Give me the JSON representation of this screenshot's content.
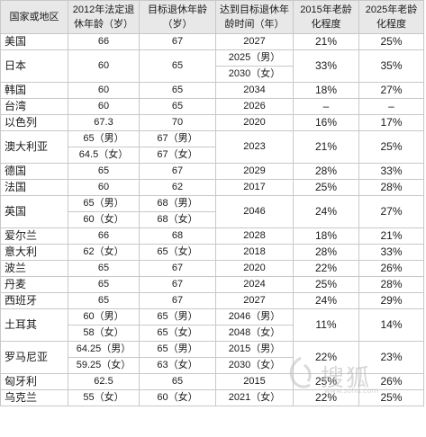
{
  "headers": {
    "country": "国家或地区",
    "age2012": "2012年法定退休年龄（岁）",
    "target_age": "目标退休年龄（岁）",
    "reach_time": "达到目标退休年龄时间（年）",
    "aging2015": "2015年老龄化程度",
    "aging2025": "2025年老龄化程度"
  },
  "rows": [
    {
      "country": "美国",
      "age2012": [
        "66"
      ],
      "target": [
        "67"
      ],
      "time": [
        "2027"
      ],
      "p2015": "21%",
      "p2025": "25%"
    },
    {
      "country": "日本",
      "age2012": [
        "60"
      ],
      "target": [
        "65"
      ],
      "time": [
        "2025（男）",
        "2030（女）"
      ],
      "p2015": "33%",
      "p2025": "35%"
    },
    {
      "country": "韩国",
      "age2012": [
        "60"
      ],
      "target": [
        "65"
      ],
      "time": [
        "2034"
      ],
      "p2015": "18%",
      "p2025": "27%"
    },
    {
      "country": "台湾",
      "age2012": [
        "60"
      ],
      "target": [
        "65"
      ],
      "time": [
        "2026"
      ],
      "p2015": "–",
      "p2025": "–"
    },
    {
      "country": "以色列",
      "age2012": [
        "67.3"
      ],
      "target": [
        "70"
      ],
      "time": [
        "2020"
      ],
      "p2015": "16%",
      "p2025": "17%"
    },
    {
      "country": "澳大利亚",
      "age2012": [
        "65（男）",
        "64.5（女）"
      ],
      "target": [
        "67（男）",
        "67（女）"
      ],
      "time": [
        "2023"
      ],
      "p2015": "21%",
      "p2025": "25%"
    },
    {
      "country": "德国",
      "age2012": [
        "65"
      ],
      "target": [
        "67"
      ],
      "time": [
        "2029"
      ],
      "p2015": "28%",
      "p2025": "33%"
    },
    {
      "country": "法国",
      "age2012": [
        "60"
      ],
      "target": [
        "62"
      ],
      "time": [
        "2017"
      ],
      "p2015": "25%",
      "p2025": "28%"
    },
    {
      "country": "英国",
      "age2012": [
        "65（男）",
        "60（女）"
      ],
      "target": [
        "68（男）",
        "68（女）"
      ],
      "time": [
        "2046"
      ],
      "p2015": "24%",
      "p2025": "27%"
    },
    {
      "country": "爱尔兰",
      "age2012": [
        "66"
      ],
      "target": [
        "68"
      ],
      "time": [
        "2028"
      ],
      "p2015": "18%",
      "p2025": "21%"
    },
    {
      "country": "意大利",
      "age2012": [
        "62（女）"
      ],
      "target": [
        "65（女）"
      ],
      "time": [
        "2018"
      ],
      "p2015": "28%",
      "p2025": "33%"
    },
    {
      "country": "波兰",
      "age2012": [
        "65"
      ],
      "target": [
        "67"
      ],
      "time": [
        "2020"
      ],
      "p2015": "22%",
      "p2025": "26%"
    },
    {
      "country": "丹麦",
      "age2012": [
        "65"
      ],
      "target": [
        "67"
      ],
      "time": [
        "2024"
      ],
      "p2015": "25%",
      "p2025": "28%"
    },
    {
      "country": "西班牙",
      "age2012": [
        "65"
      ],
      "target": [
        "67"
      ],
      "time": [
        "2027"
      ],
      "p2015": "24%",
      "p2025": "29%"
    },
    {
      "country": "土耳其",
      "age2012": [
        "60（男）",
        "58（女）"
      ],
      "target": [
        "65（男）",
        "65（女）"
      ],
      "time": [
        "2046（男）",
        "2048（女）"
      ],
      "p2015": "11%",
      "p2025": "14%"
    },
    {
      "country": "罗马尼亚",
      "age2012": [
        "64.25（男）",
        "59.25（女）"
      ],
      "target": [
        "65（男）",
        "63（女）"
      ],
      "time": [
        "2015（男）",
        "2030（女）"
      ],
      "p2015": "22%",
      "p2025": "23%"
    },
    {
      "country": "匈牙利",
      "age2012": [
        "62.5"
      ],
      "target": [
        "65"
      ],
      "time": [
        "2015"
      ],
      "p2015": "25%",
      "p2025": "26%"
    },
    {
      "country": "乌克兰",
      "age2012": [
        "55（女）"
      ],
      "target": [
        "60（女）"
      ],
      "time": [
        "2021（女）"
      ],
      "p2015": "22%",
      "p2025": "25%"
    }
  ],
  "watermark": {
    "text": "搜狐",
    "url": "www.sohu.com"
  },
  "colors": {
    "header_bg": "#e8e8e8",
    "grid": "#c8c8c8",
    "text": "#1a1a1a"
  }
}
